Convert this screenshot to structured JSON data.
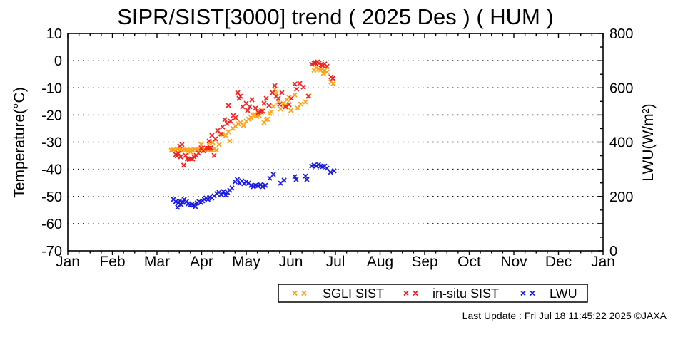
{
  "title": "SIPR/SIST[3000] trend ( 2025 Des ) ( HUM )",
  "footer": {
    "last_update": "Last Update : Fri Jul 18 11:45:22 2025  ©JAXA"
  },
  "chart_data": {
    "type": "scatter",
    "title": "SIPR/SIST[3000] trend ( 2025 Des ) ( HUM )",
    "x_axis": {
      "unit": "month",
      "tick_labels": [
        "Jan",
        "Feb",
        "Mar",
        "Apr",
        "May",
        "Jun",
        "Jul",
        "Aug",
        "Sep",
        "Oct",
        "Nov",
        "Dec",
        "Jan"
      ],
      "minor_ticks_per_month": 4
    },
    "y_left": {
      "label": "Temperature(°C)",
      "min": -70,
      "max": 10,
      "ticks": [
        10,
        0,
        -10,
        -20,
        -30,
        -40,
        -50,
        -60,
        -70
      ],
      "grid_at": [
        0,
        -10,
        -20,
        -30,
        -40,
        -50,
        -60
      ]
    },
    "y_right": {
      "label": "LWU(W/m²)",
      "min": 0,
      "max": 800,
      "tick_step": 50,
      "major_step": 100,
      "label_ticks": [
        0,
        200,
        400,
        600,
        800
      ]
    },
    "grid": "dotted-horizontal",
    "legend_position": "bottom",
    "series": [
      {
        "name": "SGLI SIST",
        "color": "#ffa115",
        "marker": "x",
        "axis": "left",
        "points": [
          [
            2.32,
            -33
          ],
          [
            2.37,
            -32.8
          ],
          [
            2.42,
            -33.1
          ],
          [
            2.46,
            -32.7
          ],
          [
            2.51,
            -32.9
          ],
          [
            2.56,
            -33
          ],
          [
            2.61,
            -32.8
          ],
          [
            2.66,
            -32.9
          ],
          [
            2.7,
            -33.1
          ],
          [
            2.75,
            -32.8
          ],
          [
            2.8,
            -33
          ],
          [
            2.85,
            -32.7
          ],
          [
            2.9,
            -32.9
          ],
          [
            2.94,
            -33
          ],
          [
            2.99,
            -32.8
          ],
          [
            3.04,
            -33.1
          ],
          [
            3.09,
            -32.9
          ],
          [
            3.14,
            -32.8
          ],
          [
            3.18,
            -33
          ],
          [
            3.23,
            -32.9
          ],
          [
            3.28,
            -32.7
          ],
          [
            3.33,
            -32.9
          ],
          [
            2.75,
            -33.6
          ],
          [
            2.99,
            -30.9
          ],
          [
            3.17,
            -30.4
          ],
          [
            3.25,
            -30.1
          ],
          [
            3.39,
            -30.9
          ],
          [
            3.41,
            -27
          ],
          [
            3.47,
            -27.2
          ],
          [
            3.54,
            -27.6
          ],
          [
            3.6,
            -26.2
          ],
          [
            3.63,
            -29.6
          ],
          [
            3.7,
            -24.9
          ],
          [
            3.76,
            -24.1
          ],
          [
            3.82,
            -23.3
          ],
          [
            3.87,
            -22.8
          ],
          [
            3.94,
            -23.8
          ],
          [
            4,
            -22.3
          ],
          [
            4.05,
            -21.5
          ],
          [
            4.11,
            -21
          ],
          [
            4.16,
            -20.2
          ],
          [
            4.19,
            -19.7
          ],
          [
            4.24,
            -20.5
          ],
          [
            4.29,
            -20.2
          ],
          [
            4.34,
            -18.3
          ],
          [
            4.4,
            -22.8
          ],
          [
            4.45,
            -21.8
          ],
          [
            4.48,
            -21.5
          ],
          [
            4.53,
            -19.4
          ],
          [
            4.56,
            -18.8
          ],
          [
            4.61,
            -16.8
          ],
          [
            4.64,
            -10.5
          ],
          [
            4.67,
            -12
          ],
          [
            4.72,
            -15.2
          ],
          [
            4.77,
            -17.8
          ],
          [
            4.83,
            -15.7
          ],
          [
            4.88,
            -16.5
          ],
          [
            4.91,
            -14.4
          ],
          [
            4.96,
            -13.5
          ],
          [
            5,
            -18.3
          ],
          [
            5.09,
            -12.6
          ],
          [
            5.15,
            -17.5
          ],
          [
            5.22,
            -16
          ],
          [
            5.33,
            -15.2
          ],
          [
            5.41,
            -13
          ],
          [
            5.52,
            -3.5
          ],
          [
            5.57,
            -2.6
          ],
          [
            5.62,
            -3
          ],
          [
            5.66,
            -3.4
          ],
          [
            5.71,
            -3
          ],
          [
            5.73,
            -4.7
          ],
          [
            5.76,
            -3.6
          ],
          [
            5.81,
            -4.2
          ],
          [
            5.9,
            -7.9
          ],
          [
            5.95,
            -8.5
          ]
        ]
      },
      {
        "name": "in-situ SIST",
        "color": "#f22020",
        "marker": "x",
        "axis": "left",
        "points": [
          [
            2.42,
            -34.6
          ],
          [
            2.45,
            -35
          ],
          [
            2.48,
            -34.2
          ],
          [
            2.51,
            -31.4
          ],
          [
            2.53,
            -35.4
          ],
          [
            2.56,
            -30.9
          ],
          [
            2.6,
            -38.5
          ],
          [
            2.64,
            -34.9
          ],
          [
            2.68,
            -36.2
          ],
          [
            2.72,
            -36.3
          ],
          [
            2.76,
            -36.1
          ],
          [
            2.8,
            -36.2
          ],
          [
            2.83,
            -35.4
          ],
          [
            2.88,
            -34.9
          ],
          [
            2.93,
            -34
          ],
          [
            2.99,
            -32.2
          ],
          [
            3.04,
            -33.2
          ],
          [
            3.1,
            -32.2
          ],
          [
            3.15,
            -32.3
          ],
          [
            3.17,
            -29.6
          ],
          [
            3.2,
            -32.1
          ],
          [
            3.28,
            -34.9
          ],
          [
            3.23,
            -27.5
          ],
          [
            3.31,
            -28.8
          ],
          [
            3.36,
            -25.7
          ],
          [
            3.44,
            -27
          ],
          [
            3.47,
            -24.4
          ],
          [
            3.52,
            -21.7
          ],
          [
            3.57,
            -23.1
          ],
          [
            3.6,
            -16.5
          ],
          [
            3.65,
            -22.3
          ],
          [
            3.71,
            -20.2
          ],
          [
            3.76,
            -21
          ],
          [
            3.81,
            -11.8
          ],
          [
            3.84,
            -13.9
          ],
          [
            3.87,
            -13.1
          ],
          [
            3.92,
            -17
          ],
          [
            4,
            -15.7
          ],
          [
            4.03,
            -18.3
          ],
          [
            4.08,
            -17
          ],
          [
            4.13,
            -14.4
          ],
          [
            4.21,
            -17.5
          ],
          [
            4.27,
            -19.1
          ],
          [
            4.32,
            -18.8
          ],
          [
            4.37,
            -18.6
          ],
          [
            4.4,
            -15.7
          ],
          [
            4.45,
            -13.9
          ],
          [
            4.51,
            -16.5
          ],
          [
            4.59,
            -11.8
          ],
          [
            4.64,
            -9.2
          ],
          [
            4.67,
            -13.1
          ],
          [
            4.72,
            -13.9
          ],
          [
            4.75,
            -16.1
          ],
          [
            4.8,
            -11.8
          ],
          [
            4.88,
            -17
          ],
          [
            4.96,
            -16.2
          ],
          [
            5.01,
            -13.9
          ],
          [
            5.09,
            -8.6
          ],
          [
            5.13,
            -10.5
          ],
          [
            5.2,
            -8.4
          ],
          [
            5.28,
            -9.7
          ],
          [
            5.39,
            -13.1
          ],
          [
            5.47,
            -1.3
          ],
          [
            5.52,
            -0.9
          ],
          [
            5.55,
            -0.8
          ],
          [
            5.6,
            -0.5
          ],
          [
            5.63,
            -1
          ],
          [
            5.68,
            -1.5
          ],
          [
            5.71,
            -1.8
          ],
          [
            5.76,
            -1.2
          ],
          [
            5.81,
            -2.1
          ],
          [
            5.9,
            -6
          ],
          [
            5.94,
            -6.5
          ]
        ]
      },
      {
        "name": "LWU",
        "color": "#1b1be0",
        "marker": "x",
        "axis": "right",
        "points": [
          [
            2.37,
            189
          ],
          [
            2.42,
            181
          ],
          [
            2.46,
            160
          ],
          [
            2.48,
            176
          ],
          [
            2.51,
            184
          ],
          [
            2.54,
            170
          ],
          [
            2.58,
            178
          ],
          [
            2.61,
            189
          ],
          [
            2.66,
            181
          ],
          [
            2.7,
            173
          ],
          [
            2.74,
            168
          ],
          [
            2.78,
            170
          ],
          [
            2.82,
            168
          ],
          [
            2.86,
            163
          ],
          [
            2.9,
            176
          ],
          [
            2.94,
            181
          ],
          [
            2.98,
            178
          ],
          [
            3.02,
            184
          ],
          [
            3.06,
            189
          ],
          [
            3.1,
            194
          ],
          [
            3.14,
            189
          ],
          [
            3.18,
            197
          ],
          [
            3.23,
            194
          ],
          [
            3.28,
            202
          ],
          [
            3.34,
            210
          ],
          [
            3.39,
            215
          ],
          [
            3.44,
            207
          ],
          [
            3.49,
            218
          ],
          [
            3.54,
            205
          ],
          [
            3.58,
            215
          ],
          [
            3.63,
            223
          ],
          [
            3.68,
            231
          ],
          [
            3.75,
            254
          ],
          [
            3.8,
            262
          ],
          [
            3.85,
            249
          ],
          [
            3.9,
            257
          ],
          [
            3.95,
            247
          ],
          [
            4,
            254
          ],
          [
            4.05,
            249
          ],
          [
            4.11,
            241
          ],
          [
            4.16,
            236
          ],
          [
            4.21,
            241
          ],
          [
            4.26,
            239
          ],
          [
            4.32,
            243
          ],
          [
            4.37,
            236
          ],
          [
            4.43,
            241
          ],
          [
            4.53,
            267
          ],
          [
            4.61,
            281
          ],
          [
            4.77,
            249
          ],
          [
            4.85,
            260
          ],
          [
            5.09,
            273
          ],
          [
            5.12,
            262
          ],
          [
            5.33,
            275
          ],
          [
            5.36,
            262
          ],
          [
            5.47,
            312
          ],
          [
            5.52,
            315
          ],
          [
            5.57,
            312
          ],
          [
            5.62,
            317
          ],
          [
            5.66,
            312
          ],
          [
            5.71,
            310
          ],
          [
            5.76,
            312
          ],
          [
            5.81,
            304
          ],
          [
            5.89,
            289
          ],
          [
            5.97,
            294
          ]
        ]
      }
    ]
  }
}
